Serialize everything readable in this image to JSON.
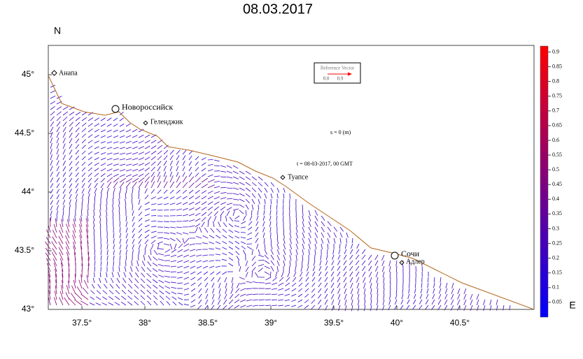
{
  "title": "08.03.2017",
  "x_axis_label": "E",
  "y_axis_label": "N",
  "xlim": [
    37.233,
    41.089
  ],
  "ylim": [
    43,
    45.25
  ],
  "xticks": [
    {
      "value": 37.5,
      "label": "37.5°"
    },
    {
      "value": 38,
      "label": "38°"
    },
    {
      "value": 38.5,
      "label": "38.5°"
    },
    {
      "value": 39,
      "label": "39°"
    },
    {
      "value": 39.5,
      "label": "39.5°"
    },
    {
      "value": 40,
      "label": "40°"
    },
    {
      "value": 40.5,
      "label": "40.5°"
    }
  ],
  "yticks": [
    {
      "value": 43,
      "label": "43°"
    },
    {
      "value": 43.5,
      "label": "43.5°"
    },
    {
      "value": 44,
      "label": "44°"
    },
    {
      "value": 44.5,
      "label": "44.5°"
    },
    {
      "value": 45,
      "label": "45°"
    }
  ],
  "cities": [
    "Анапа",
    "Новороссийск",
    "Геленджик",
    "Туапсе",
    "Сочи",
    "Адлер"
  ],
  "annotations": [
    "s = 0 (m)",
    "t = 08-03-2017, 00 GMT"
  ],
  "reference_vector": {
    "title": "Reference Vector",
    "labels": [
      "0.0",
      "0.9"
    ]
  },
  "colorbar": {
    "lim": [
      0,
      0.92
    ],
    "ticks": [
      0.05,
      0.1,
      0.15,
      0.2,
      0.25,
      0.3,
      0.35,
      0.4,
      0.45,
      0.5,
      0.55,
      0.6,
      0.65,
      0.7,
      0.75,
      0.8,
      0.85,
      0.9
    ],
    "colors": [
      "#0000ff",
      "#800080",
      "#ff0000"
    ]
  }
}
